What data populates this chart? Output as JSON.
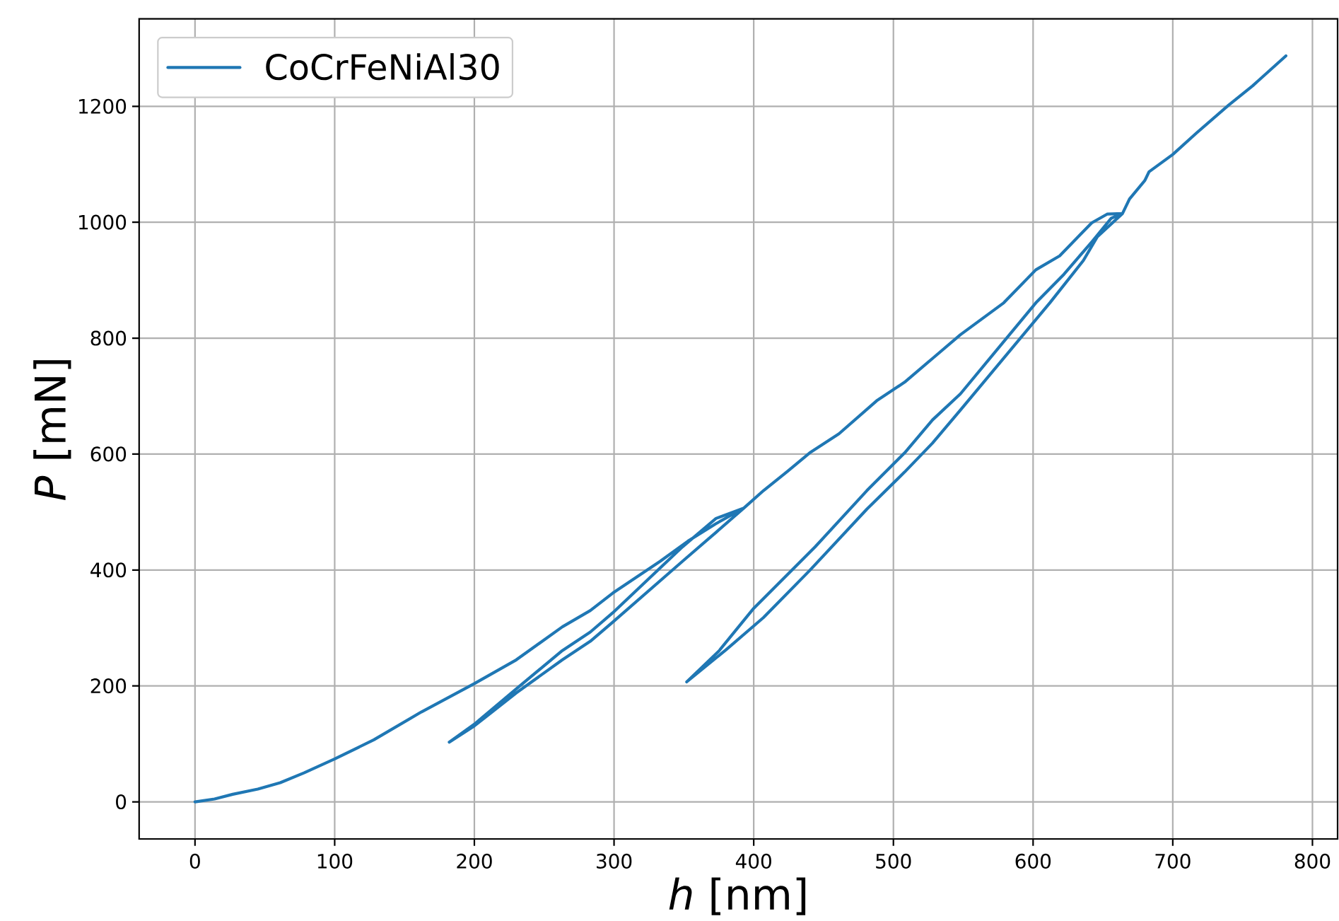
{
  "chart_data": {
    "type": "line",
    "xlabel": "*h* [nm]",
    "ylabel": "*P* [mN]",
    "xlim": [
      -40,
      818
    ],
    "ylim": [
      -64,
      1351
    ],
    "xticks": [
      0,
      100,
      200,
      300,
      400,
      500,
      600,
      700,
      800
    ],
    "yticks": [
      0,
      200,
      400,
      600,
      800,
      1000,
      1200
    ],
    "grid": true,
    "legend": "top left",
    "line_style": "solid",
    "series": [
      {
        "name": "CoCrFeNiAl30",
        "color": "#1f77b4",
        "x": [
          0,
          14,
          27,
          45,
          61,
          78,
          100,
          128,
          162,
          200,
          230,
          263,
          283,
          299,
          333,
          353,
          373,
          393,
          373,
          349,
          299,
          283,
          263,
          230,
          200,
          182,
          200,
          230,
          263,
          283,
          299,
          349,
          373,
          393,
          407,
          424,
          440,
          461,
          488,
          508,
          528,
          548,
          579,
          602,
          619,
          642,
          653,
          664,
          646,
          636,
          612,
          548,
          528,
          508,
          481,
          440,
          407,
          380,
          352,
          375,
          400,
          444,
          481,
          508,
          528,
          548,
          602,
          622,
          642,
          656,
          664,
          669,
          680,
          683,
          700,
          717,
          740,
          757,
          781
        ],
        "values": [
          0,
          5,
          13,
          22,
          33,
          50,
          74,
          107,
          155,
          204,
          245,
          302,
          330,
          360,
          415,
          450,
          480,
          507,
          465,
          415,
          310,
          277,
          245,
          188,
          131,
          103,
          134,
          195,
          261,
          293,
          326,
          440,
          489,
          507,
          537,
          570,
          602,
          635,
          692,
          724,
          765,
          806,
          861,
          918,
          942,
          999,
          1014,
          1015,
          975,
          934,
          861,
          676,
          619,
          569,
          505,
          399,
          318,
          262,
          207,
          260,
          334,
          440,
          537,
          602,
          659,
          704,
          861,
          910,
          966,
          1007,
          1015,
          1040,
          1072,
          1087,
          1117,
          1154,
          1202,
          1235,
          1287
        ]
      }
    ]
  }
}
